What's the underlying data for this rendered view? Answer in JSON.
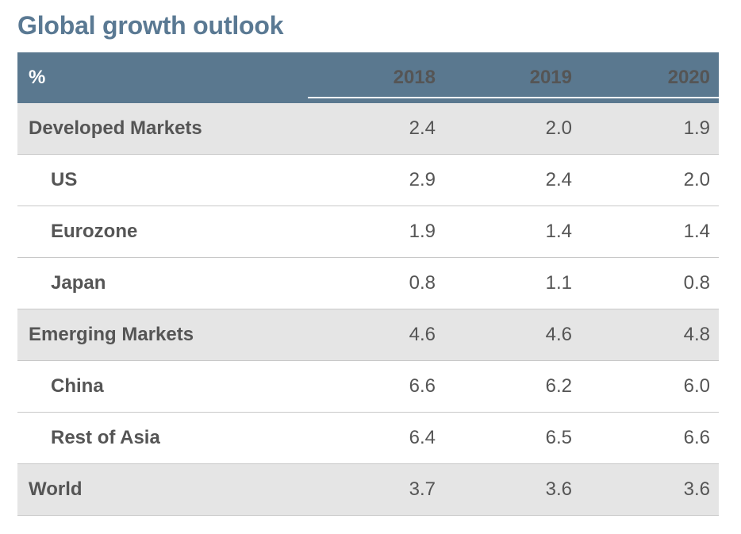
{
  "title": "Global growth outlook",
  "chart_data": {
    "type": "table",
    "title": "Global growth outlook",
    "unit_label": "%",
    "columns": [
      "2018",
      "2019",
      "2020"
    ],
    "rows": [
      {
        "label": "Developed Markets",
        "level": 0,
        "shaded": true,
        "values": [
          "2.4",
          "2.0",
          "1.9"
        ]
      },
      {
        "label": "US",
        "level": 1,
        "shaded": false,
        "values": [
          "2.9",
          "2.4",
          "2.0"
        ]
      },
      {
        "label": "Eurozone",
        "level": 1,
        "shaded": false,
        "values": [
          "1.9",
          "1.4",
          "1.4"
        ]
      },
      {
        "label": "Japan",
        "level": 1,
        "shaded": false,
        "values": [
          "0.8",
          "1.1",
          "0.8"
        ]
      },
      {
        "label": "Emerging Markets",
        "level": 0,
        "shaded": true,
        "values": [
          "4.6",
          "4.6",
          "4.8"
        ]
      },
      {
        "label": "China",
        "level": 1,
        "shaded": false,
        "values": [
          "6.6",
          "6.2",
          "6.0"
        ]
      },
      {
        "label": "Rest of Asia",
        "level": 1,
        "shaded": false,
        "values": [
          "6.4",
          "6.5",
          "6.6"
        ]
      },
      {
        "label": "World",
        "level": 0,
        "shaded": true,
        "values": [
          "3.7",
          "3.6",
          "3.6"
        ]
      }
    ]
  },
  "colors": {
    "title": "#5a7993",
    "header_bg": "#5a788f",
    "header_text": "#ffffff",
    "shaded_row": "#e5e5e5",
    "text": "#555555",
    "rule": "#c8c8c8"
  }
}
